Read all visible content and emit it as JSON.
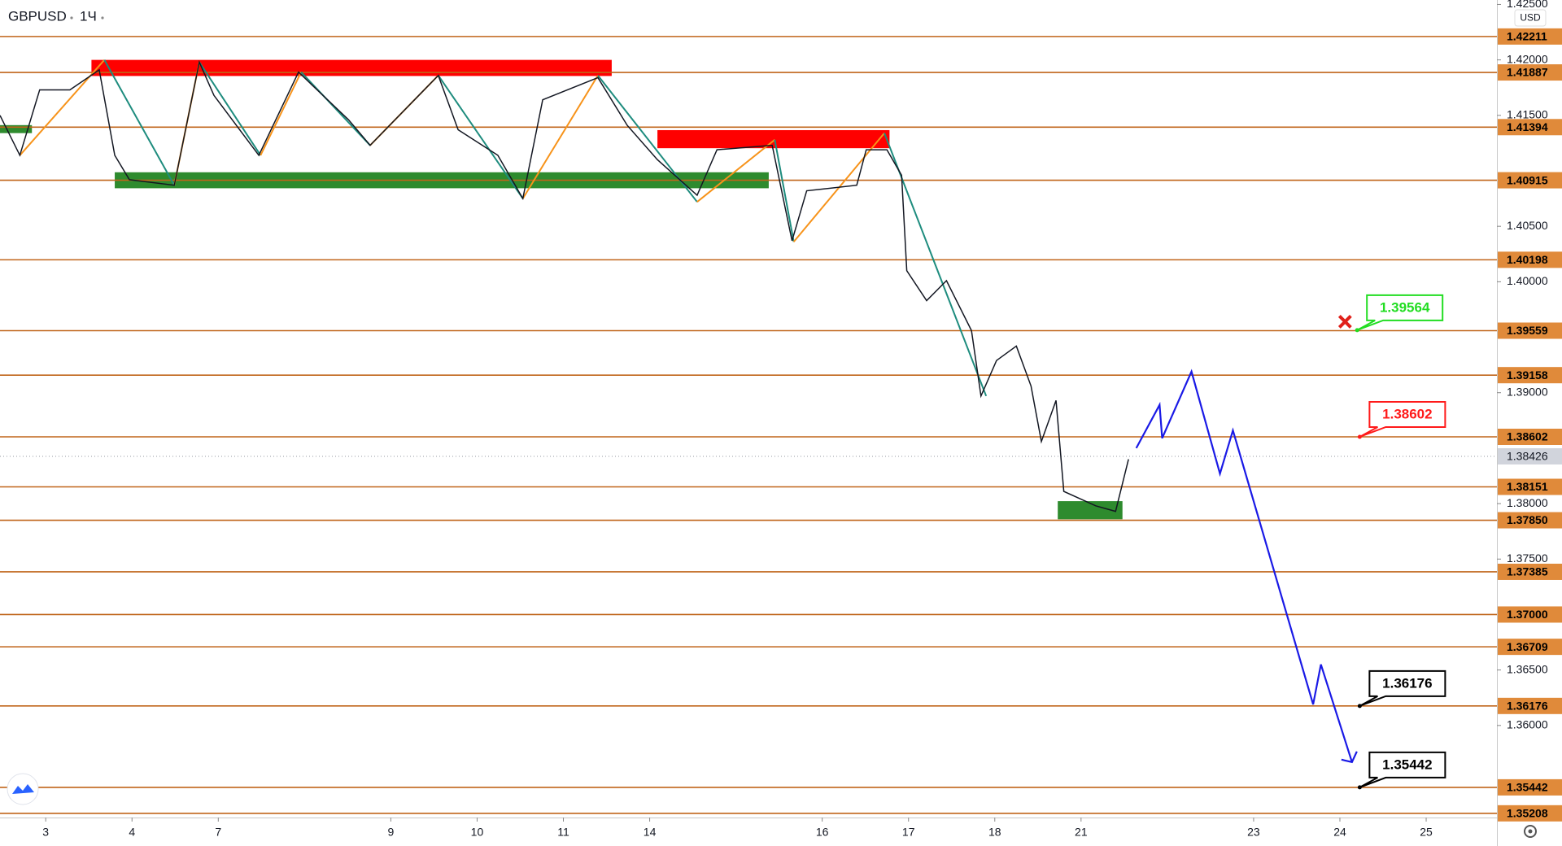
{
  "chart_data": {
    "type": "line",
    "title": "GBPUSD",
    "interval": "1Ч",
    "currency": "USD",
    "ylim": [
      1.3517,
      1.4254
    ],
    "xlim": [
      -0.53,
      16.82
    ],
    "yticks": [
      {
        "value": 1.425,
        "label": "1.42500"
      },
      {
        "value": 1.42,
        "label": "1.42000"
      },
      {
        "value": 1.415,
        "label": "1.41500"
      },
      {
        "value": 1.405,
        "label": "1.40500"
      },
      {
        "value": 1.4,
        "label": "1.40000"
      },
      {
        "value": 1.39,
        "label": "1.39000"
      },
      {
        "value": 1.38,
        "label": "1.38000"
      },
      {
        "value": 1.375,
        "label": "1.37500"
      },
      {
        "value": 1.365,
        "label": "1.36500"
      },
      {
        "value": 1.36,
        "label": "1.36000"
      }
    ],
    "xticks": [
      {
        "value": 0,
        "label": "3"
      },
      {
        "value": 1,
        "label": "4"
      },
      {
        "value": 2,
        "label": "7"
      },
      {
        "value": 4,
        "label": "9"
      },
      {
        "value": 5,
        "label": "10"
      },
      {
        "value": 6,
        "label": "11"
      },
      {
        "value": 7,
        "label": "14"
      },
      {
        "value": 9,
        "label": "16"
      },
      {
        "value": 10,
        "label": "17"
      },
      {
        "value": 11,
        "label": "18"
      },
      {
        "value": 12,
        "label": "21"
      },
      {
        "value": 14,
        "label": "23"
      },
      {
        "value": 15,
        "label": "24"
      },
      {
        "value": 16,
        "label": "25"
      }
    ],
    "levels": {
      "color": "#c0651a",
      "label_color": "#e08a3a",
      "values": [
        1.42211,
        1.41887,
        1.41394,
        1.40915,
        1.40198,
        1.39559,
        1.39158,
        1.38602,
        1.38151,
        {
          "value": 1.3785,
          "label": "1.37850"
        },
        1.37385,
        {
          "value": 1.37,
          "label": "1.37000"
        },
        1.36709,
        1.36176,
        1.35442,
        1.35208
      ]
    },
    "last_price": 1.38426,
    "series": [
      {
        "color": "#131722",
        "x": [
          -0.53,
          -0.3,
          -0.07,
          0.28,
          0.62,
          0.8,
          0.97,
          1.49,
          1.78,
          1.95,
          2.47,
          2.93,
          3.51,
          3.76,
          4.55,
          4.78,
          5.24,
          5.53,
          5.76,
          6.4,
          6.74,
          7.09,
          7.55,
          7.78,
          8.42,
          8.65,
          8.82,
          9.4,
          9.51,
          9.75,
          9.92,
          9.98,
          10.21,
          10.44,
          10.73,
          10.84,
          11.02,
          11.25,
          11.42,
          11.54,
          11.71,
          11.8,
          12.17,
          12.4,
          12.55
        ],
        "values": [
          1.415,
          1.4114,
          1.4173,
          1.4173,
          1.4191,
          1.4114,
          1.4092,
          1.4087,
          1.4198,
          1.4168,
          1.4114,
          1.4189,
          1.4146,
          1.4123,
          1.4186,
          1.4137,
          1.4114,
          1.4075,
          1.4164,
          1.4184,
          1.4141,
          1.411,
          1.4078,
          1.4119,
          1.4123,
          1.4037,
          1.4082,
          1.4087,
          1.4119,
          1.4119,
          1.4096,
          1.401,
          1.3983,
          1.4001,
          1.3956,
          1.3897,
          1.3929,
          1.3942,
          1.3906,
          1.3856,
          1.3893,
          1.3811,
          1.3798,
          1.3793,
          1.384
        ]
      }
    ],
    "zigzag": {
      "up_color": "#f7931a",
      "down_color": "#1e8c7e",
      "x": [
        -0.3,
        0.68,
        1.49,
        1.78,
        2.49,
        2.96,
        3.76,
        4.55,
        5.53,
        6.4,
        7.55,
        8.45,
        8.67,
        9.72,
        10.9
      ],
      "values": [
        1.4114,
        1.42,
        1.4087,
        1.4198,
        1.4114,
        1.4189,
        1.4123,
        1.4186,
        1.4075,
        1.4186,
        1.4072,
        1.4128,
        1.4036,
        1.4134,
        1.3897
      ]
    },
    "zones": [
      {
        "color": "#ff0000",
        "x": [
          0.53,
          6.56
        ],
        "y": [
          1.41855,
          1.42
        ]
      },
      {
        "color": "#ff0000",
        "x": [
          7.09,
          9.78
        ],
        "y": [
          1.41204,
          1.41367
        ]
      },
      {
        "color": "#2e8b2e",
        "x": [
          0.8,
          8.38
        ],
        "y": [
          1.40843,
          1.40987
        ]
      },
      {
        "color": "#2e8b2e",
        "x": [
          -0.53,
          -0.16
        ],
        "y": [
          1.4134,
          1.41412
        ]
      },
      {
        "color": "#2e8b2e",
        "x": [
          11.73,
          12.48
        ],
        "y": [
          1.37859,
          1.38022
        ]
      }
    ],
    "projection": {
      "color": "#1a1ae6",
      "x": [
        12.64,
        12.91,
        12.94,
        13.28,
        13.61,
        13.76,
        14.69,
        14.78,
        15.14
      ],
      "values": [
        1.385,
        1.3889,
        1.3859,
        1.3919,
        1.3827,
        1.3866,
        1.3619,
        1.3655,
        1.3567
      ]
    },
    "callouts": [
      {
        "value": 1.39564,
        "x": 15.2,
        "color": "#22dd22"
      },
      {
        "value": 1.38602,
        "x": 15.23,
        "color": "#ff1a1a"
      },
      {
        "value": 1.36176,
        "x": 15.23,
        "color": "#000000"
      },
      {
        "value": 1.35442,
        "x": 15.23,
        "color": "#000000"
      }
    ],
    "cancel_marker": {
      "x": 15.06,
      "y": 1.3964,
      "color": "#e0201a"
    }
  }
}
